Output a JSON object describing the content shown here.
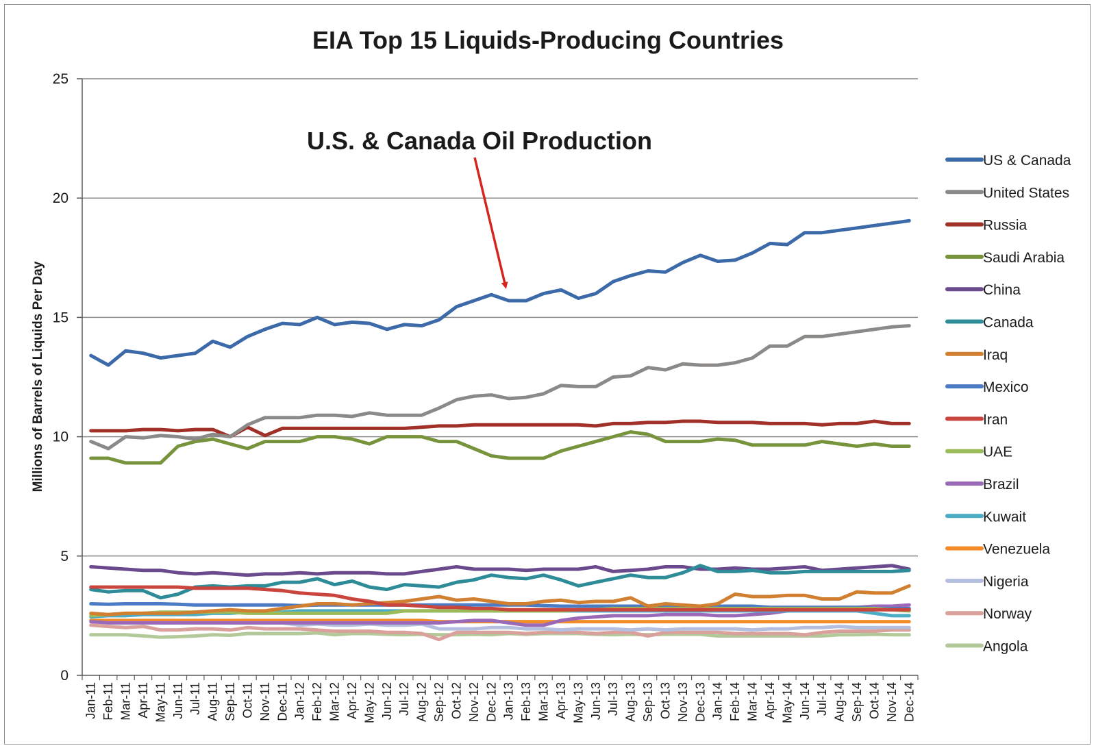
{
  "chart_data": {
    "type": "line",
    "title": "EIA Top 15 Liquids-Producing Countries",
    "xlabel": "",
    "ylabel": "Millions of Barrels of Liquids Per Day",
    "ylim": [
      0,
      25
    ],
    "yticks": [
      0,
      5,
      10,
      15,
      20,
      25
    ],
    "grid": true,
    "legend_position": "right",
    "annotation": "U.S. & Canada Oil Production",
    "categories": [
      "Jan-11",
      "Feb-11",
      "Mar-11",
      "Apr-11",
      "May-11",
      "Jun-11",
      "Jul-11",
      "Aug-11",
      "Sep-11",
      "Oct-11",
      "Nov-11",
      "Dec-11",
      "Jan-12",
      "Feb-12",
      "Mar-12",
      "Apr-12",
      "May-12",
      "Jun-12",
      "Jul-12",
      "Aug-12",
      "Sep-12",
      "Oct-12",
      "Nov-12",
      "Dec-12",
      "Jan-13",
      "Feb-13",
      "Mar-13",
      "Apr-13",
      "May-13",
      "Jun-13",
      "Jul-13",
      "Aug-13",
      "Sep-13",
      "Oct-13",
      "Nov-13",
      "Dec-13",
      "Jan-14",
      "Feb-14",
      "Mar-14",
      "Apr-14",
      "May-14",
      "Jun-14",
      "Jul-14",
      "Aug-14",
      "Sep-14",
      "Oct-14",
      "Nov-14",
      "Dec-14"
    ],
    "series": [
      {
        "name": "Angola",
        "color": "#b3c99a",
        "values": [
          1.7,
          1.7,
          1.7,
          1.65,
          1.6,
          1.62,
          1.65,
          1.7,
          1.68,
          1.75,
          1.75,
          1.75,
          1.75,
          1.78,
          1.7,
          1.75,
          1.75,
          1.72,
          1.7,
          1.72,
          1.7,
          1.7,
          1.72,
          1.7,
          1.75,
          1.72,
          1.75,
          1.75,
          1.75,
          1.72,
          1.7,
          1.72,
          1.7,
          1.72,
          1.72,
          1.72,
          1.65,
          1.65,
          1.65,
          1.65,
          1.65,
          1.65,
          1.65,
          1.7,
          1.7,
          1.72,
          1.7,
          1.7
        ]
      },
      {
        "name": "Norway",
        "color": "#d9a09c",
        "values": [
          2.1,
          2.05,
          2.0,
          2.05,
          1.9,
          1.9,
          1.95,
          1.95,
          1.9,
          2.0,
          1.95,
          1.95,
          1.95,
          1.9,
          1.85,
          1.85,
          1.85,
          1.8,
          1.8,
          1.75,
          1.5,
          1.8,
          1.8,
          1.8,
          1.8,
          1.75,
          1.8,
          1.8,
          1.8,
          1.75,
          1.8,
          1.8,
          1.65,
          1.8,
          1.8,
          1.8,
          1.8,
          1.75,
          1.75,
          1.75,
          1.75,
          1.7,
          1.8,
          1.85,
          1.85,
          1.85,
          1.9,
          1.9
        ]
      },
      {
        "name": "Nigeria",
        "color": "#b4bfe0",
        "values": [
          2.3,
          2.25,
          2.2,
          2.25,
          2.2,
          2.2,
          2.25,
          2.25,
          2.2,
          2.2,
          2.2,
          2.2,
          2.1,
          2.15,
          2.1,
          2.1,
          2.15,
          2.1,
          2.1,
          2.15,
          1.95,
          1.95,
          1.95,
          2.0,
          2.0,
          1.95,
          1.95,
          1.9,
          1.95,
          1.95,
          1.95,
          1.9,
          1.95,
          1.9,
          1.95,
          1.95,
          1.95,
          1.95,
          1.9,
          1.95,
          1.95,
          2.0,
          2.0,
          2.05,
          2.0,
          2.0,
          2.0,
          2.0
        ]
      },
      {
        "name": "Venezuela",
        "color": "#f28c28",
        "values": [
          2.3,
          2.3,
          2.3,
          2.3,
          2.3,
          2.3,
          2.3,
          2.3,
          2.3,
          2.3,
          2.3,
          2.3,
          2.3,
          2.3,
          2.3,
          2.3,
          2.3,
          2.3,
          2.3,
          2.3,
          2.25,
          2.25,
          2.25,
          2.25,
          2.25,
          2.25,
          2.25,
          2.25,
          2.25,
          2.25,
          2.25,
          2.25,
          2.25,
          2.25,
          2.25,
          2.25,
          2.25,
          2.25,
          2.25,
          2.25,
          2.25,
          2.25,
          2.25,
          2.25,
          2.25,
          2.25,
          2.25,
          2.25
        ]
      },
      {
        "name": "Brazil",
        "color": "#9a6ab8",
        "values": [
          2.25,
          2.2,
          2.2,
          2.2,
          2.2,
          2.2,
          2.2,
          2.2,
          2.2,
          2.2,
          2.2,
          2.2,
          2.2,
          2.2,
          2.2,
          2.2,
          2.2,
          2.2,
          2.2,
          2.2,
          2.2,
          2.25,
          2.3,
          2.3,
          2.2,
          2.1,
          2.1,
          2.3,
          2.4,
          2.45,
          2.5,
          2.5,
          2.5,
          2.55,
          2.55,
          2.55,
          2.5,
          2.5,
          2.55,
          2.6,
          2.7,
          2.75,
          2.8,
          2.85,
          2.85,
          2.9,
          2.9,
          2.95
        ]
      },
      {
        "name": "Mexico",
        "color": "#4a7bc4",
        "values": [
          3.0,
          2.98,
          3.0,
          3.0,
          3.0,
          2.98,
          2.95,
          2.95,
          2.95,
          2.95,
          2.95,
          2.95,
          2.92,
          2.95,
          2.95,
          2.95,
          2.95,
          2.95,
          2.95,
          2.95,
          2.95,
          2.95,
          2.95,
          2.95,
          2.95,
          2.95,
          2.92,
          2.9,
          2.9,
          2.9,
          2.9,
          2.9,
          2.9,
          2.92,
          2.9,
          2.9,
          2.9,
          2.9,
          2.9,
          2.85,
          2.85,
          2.85,
          2.85,
          2.85,
          2.85,
          2.8,
          2.8,
          2.8
        ]
      },
      {
        "name": "Kuwait",
        "color": "#4cacc6",
        "values": [
          2.45,
          2.5,
          2.5,
          2.55,
          2.55,
          2.55,
          2.55,
          2.6,
          2.6,
          2.65,
          2.65,
          2.65,
          2.7,
          2.7,
          2.7,
          2.7,
          2.7,
          2.7,
          2.7,
          2.7,
          2.7,
          2.7,
          2.7,
          2.7,
          2.7,
          2.7,
          2.7,
          2.7,
          2.7,
          2.7,
          2.7,
          2.7,
          2.7,
          2.7,
          2.7,
          2.7,
          2.7,
          2.7,
          2.7,
          2.7,
          2.7,
          2.7,
          2.7,
          2.7,
          2.7,
          2.6,
          2.5,
          2.5
        ]
      },
      {
        "name": "UAE",
        "color": "#9bbb59",
        "values": [
          2.5,
          2.55,
          2.6,
          2.6,
          2.65,
          2.65,
          2.65,
          2.65,
          2.65,
          2.6,
          2.6,
          2.6,
          2.6,
          2.6,
          2.6,
          2.6,
          2.6,
          2.6,
          2.7,
          2.7,
          2.7,
          2.7,
          2.7,
          2.7,
          2.7,
          2.7,
          2.7,
          2.7,
          2.75,
          2.75,
          2.8,
          2.8,
          2.8,
          2.8,
          2.8,
          2.8,
          2.8,
          2.8,
          2.8,
          2.8,
          2.8,
          2.8,
          2.8,
          2.8,
          2.8,
          2.8,
          2.75,
          2.7
        ]
      },
      {
        "name": "Iraq",
        "color": "#d08030",
        "values": [
          2.6,
          2.55,
          2.6,
          2.6,
          2.6,
          2.6,
          2.65,
          2.7,
          2.75,
          2.7,
          2.7,
          2.8,
          2.9,
          3.0,
          3.0,
          2.95,
          3.0,
          3.05,
          3.1,
          3.2,
          3.3,
          3.15,
          3.2,
          3.1,
          3.0,
          3.0,
          3.1,
          3.15,
          3.05,
          3.1,
          3.1,
          3.25,
          2.9,
          3.0,
          2.95,
          2.9,
          3.0,
          3.4,
          3.3,
          3.3,
          3.35,
          3.35,
          3.2,
          3.2,
          3.5,
          3.45,
          3.45,
          3.75
        ]
      },
      {
        "name": "China",
        "color": "#6a4a8c",
        "values": [
          4.55,
          4.5,
          4.45,
          4.4,
          4.4,
          4.3,
          4.25,
          4.3,
          4.25,
          4.2,
          4.25,
          4.25,
          4.3,
          4.25,
          4.3,
          4.3,
          4.3,
          4.25,
          4.25,
          4.35,
          4.45,
          4.55,
          4.45,
          4.45,
          4.45,
          4.4,
          4.45,
          4.45,
          4.45,
          4.55,
          4.35,
          4.4,
          4.45,
          4.55,
          4.55,
          4.45,
          4.45,
          4.5,
          4.45,
          4.45,
          4.5,
          4.55,
          4.4,
          4.45,
          4.5,
          4.55,
          4.6,
          4.45
        ]
      },
      {
        "name": "Canada",
        "color": "#2e8b98",
        "values": [
          3.6,
          3.5,
          3.55,
          3.55,
          3.25,
          3.4,
          3.7,
          3.75,
          3.7,
          3.75,
          3.75,
          3.9,
          3.9,
          4.05,
          3.8,
          3.95,
          3.7,
          3.6,
          3.8,
          3.75,
          3.7,
          3.9,
          4.0,
          4.2,
          4.1,
          4.05,
          4.2,
          4.0,
          3.75,
          3.9,
          4.05,
          4.2,
          4.1,
          4.1,
          4.3,
          4.6,
          4.35,
          4.35,
          4.4,
          4.3,
          4.3,
          4.35,
          4.35,
          4.35,
          4.35,
          4.35,
          4.35,
          4.4
        ]
      },
      {
        "name": "Iran",
        "color": "#c9453d",
        "values": [
          3.7,
          3.7,
          3.7,
          3.7,
          3.7,
          3.7,
          3.65,
          3.65,
          3.65,
          3.65,
          3.6,
          3.55,
          3.45,
          3.4,
          3.35,
          3.2,
          3.1,
          2.95,
          2.95,
          2.9,
          2.85,
          2.85,
          2.8,
          2.8,
          2.75,
          2.75,
          2.75,
          2.75,
          2.75,
          2.75,
          2.75,
          2.75,
          2.75,
          2.75,
          2.75,
          2.75,
          2.75,
          2.75,
          2.75,
          2.75,
          2.75,
          2.75,
          2.75,
          2.75,
          2.75,
          2.75,
          2.75,
          2.75
        ]
      },
      {
        "name": "Saudi Arabia",
        "color": "#77933c",
        "values": [
          9.1,
          9.1,
          8.9,
          8.9,
          8.9,
          9.6,
          9.8,
          9.9,
          9.7,
          9.5,
          9.8,
          9.8,
          9.8,
          10.0,
          10.0,
          9.9,
          9.7,
          10.0,
          10.0,
          10.0,
          9.8,
          9.8,
          9.5,
          9.2,
          9.1,
          9.1,
          9.1,
          9.4,
          9.6,
          9.8,
          10.0,
          10.2,
          10.1,
          9.8,
          9.8,
          9.8,
          9.9,
          9.85,
          9.65,
          9.65,
          9.65,
          9.65,
          9.8,
          9.7,
          9.6,
          9.7,
          9.6,
          9.6
        ]
      },
      {
        "name": "Russia",
        "color": "#a03028",
        "values": [
          10.25,
          10.25,
          10.25,
          10.3,
          10.3,
          10.25,
          10.3,
          10.3,
          10.0,
          10.4,
          10.05,
          10.35,
          10.35,
          10.35,
          10.35,
          10.35,
          10.35,
          10.35,
          10.35,
          10.4,
          10.45,
          10.45,
          10.5,
          10.5,
          10.5,
          10.5,
          10.5,
          10.5,
          10.5,
          10.45,
          10.55,
          10.55,
          10.6,
          10.6,
          10.65,
          10.65,
          10.6,
          10.6,
          10.6,
          10.55,
          10.55,
          10.55,
          10.5,
          10.55,
          10.55,
          10.65,
          10.55,
          10.55
        ]
      },
      {
        "name": "United States",
        "color": "#8c8a88",
        "values": [
          9.8,
          9.5,
          10.0,
          9.95,
          10.05,
          10.0,
          9.9,
          10.1,
          10.0,
          10.5,
          10.8,
          10.8,
          10.8,
          10.9,
          10.9,
          10.85,
          11.0,
          10.9,
          10.9,
          10.9,
          11.2,
          11.55,
          11.7,
          11.75,
          11.6,
          11.65,
          11.8,
          12.15,
          12.1,
          12.1,
          12.5,
          12.55,
          12.9,
          12.8,
          13.05,
          13.0,
          13.0,
          13.1,
          13.3,
          13.8,
          13.8,
          14.2,
          14.2,
          14.3,
          14.4,
          14.5,
          14.6,
          14.65
        ]
      },
      {
        "name": "US & Canada",
        "color": "#3c6aa8",
        "values": [
          13.4,
          13.0,
          13.6,
          13.5,
          13.3,
          13.4,
          13.5,
          14.0,
          13.75,
          14.2,
          14.5,
          14.75,
          14.7,
          15.0,
          14.7,
          14.8,
          14.75,
          14.5,
          14.7,
          14.65,
          14.9,
          15.45,
          15.7,
          15.95,
          15.7,
          15.7,
          16.0,
          16.15,
          15.8,
          16.0,
          16.5,
          16.75,
          16.95,
          16.9,
          17.3,
          17.6,
          17.35,
          17.4,
          17.7,
          18.1,
          18.05,
          18.55,
          18.55,
          18.65,
          18.75,
          18.85,
          18.95,
          19.05
        ]
      }
    ],
    "legend_order": [
      "US & Canada",
      "United States",
      "Russia",
      "Saudi Arabia",
      "China",
      "Canada",
      "Iraq",
      "Mexico",
      "Iran",
      "UAE",
      "Brazil",
      "Kuwait",
      "Venezuela",
      "Nigeria",
      "Norway",
      "Angola"
    ]
  }
}
